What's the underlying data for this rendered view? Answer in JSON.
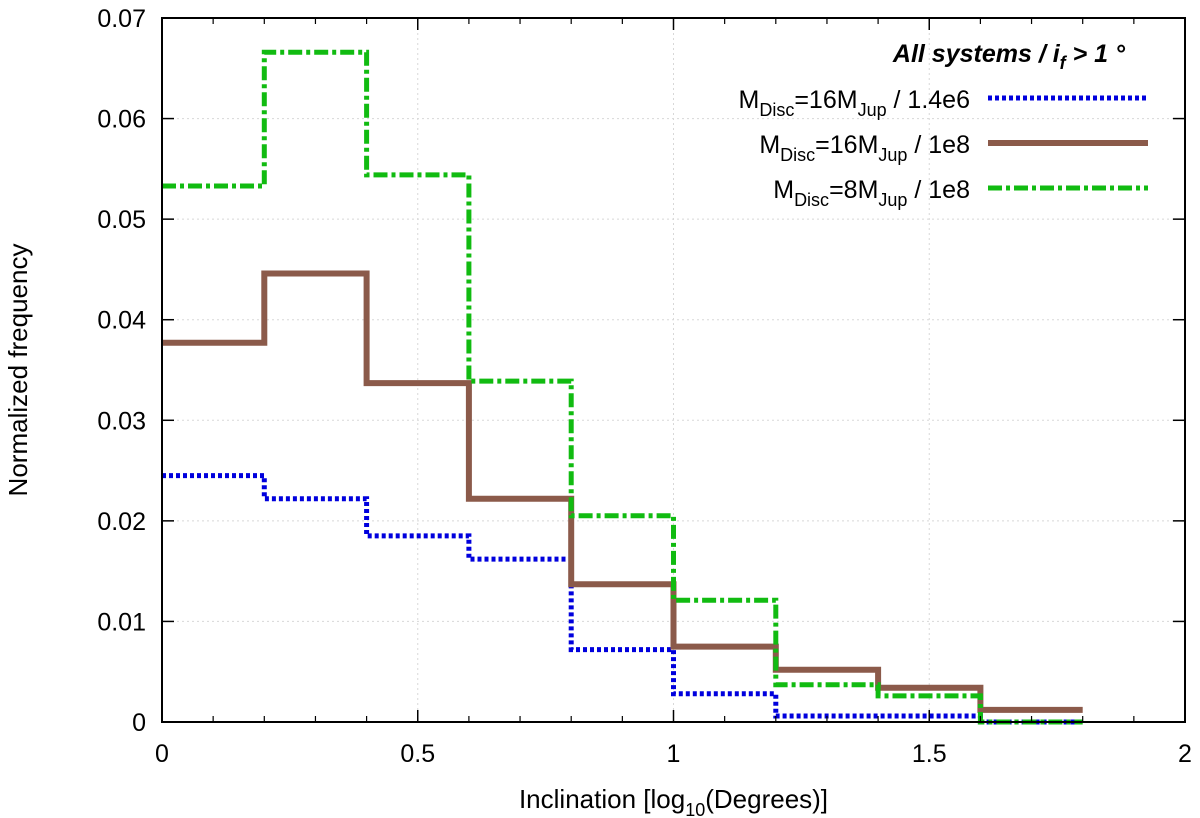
{
  "chart_data": {
    "type": "line",
    "step": true,
    "title": "",
    "xlabel": {
      "main": "Inclination [log",
      "sub": "10",
      "post": "(Degrees)]"
    },
    "ylabel": "Normalized frequency",
    "xlim": [
      0,
      2
    ],
    "ylim": [
      0,
      0.07
    ],
    "xticks": [
      0,
      0.5,
      1,
      1.5,
      2
    ],
    "xtick_labels": [
      "0",
      "0.5",
      "1",
      "1.5",
      "2"
    ],
    "yticks": [
      0,
      0.01,
      0.02,
      0.03,
      0.04,
      0.05,
      0.06,
      0.07
    ],
    "ytick_labels": [
      "0",
      "0.01",
      "0.02",
      "0.03",
      "0.04",
      "0.05",
      "0.06",
      "0.07"
    ],
    "grid": true,
    "legend_placement": "top-right",
    "legend_title": {
      "pre": "All systems / i",
      "sub": "f",
      "post": " > 1 °"
    },
    "bin_edges": [
      0,
      0.2,
      0.4,
      0.6,
      0.8,
      1.0,
      1.2,
      1.4,
      1.6,
      1.8
    ],
    "series": [
      {
        "name": "MDisc=16MJup / 1.4e6",
        "label_parts": {
          "a": "M",
          "a_sub": "Disc",
          "b": "=16M",
          "b_sub": "Jup",
          "c": " / 1.4e6"
        },
        "color": "#0000dd",
        "style": "dotted",
        "values": [
          0.0245,
          0.0222,
          0.0185,
          0.0162,
          0.0072,
          0.0028,
          0.0006,
          0.0006,
          0.0
        ]
      },
      {
        "name": "MDisc=16MJup / 1e8",
        "label_parts": {
          "a": "M",
          "a_sub": "Disc",
          "b": "=16M",
          "b_sub": "Jup",
          "c": " / 1e8"
        },
        "color": "#8b5a4a",
        "style": "solid",
        "values": [
          0.0377,
          0.0446,
          0.0337,
          0.0222,
          0.0137,
          0.0075,
          0.0052,
          0.0034,
          0.0012
        ]
      },
      {
        "name": "MDisc=8MJup / 1e8",
        "label_parts": {
          "a": "M",
          "a_sub": "Disc",
          "b": "=8M",
          "b_sub": "Jup",
          "c": " / 1e8"
        },
        "color": "#11bb11",
        "style": "dashdot",
        "values": [
          0.0533,
          0.0666,
          0.0544,
          0.0339,
          0.0205,
          0.0121,
          0.0037,
          0.0026,
          0.0
        ]
      }
    ]
  }
}
